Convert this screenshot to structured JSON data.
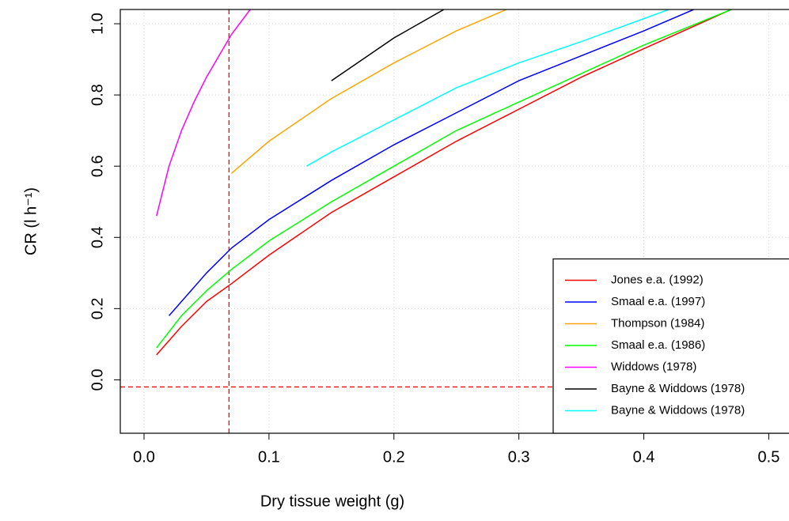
{
  "chart_data": {
    "type": "line",
    "xlabel": "Dry tissue weight (g)",
    "ylabel": "CR (l h⁻¹)",
    "xlim": [
      -0.019,
      0.52
    ],
    "ylim": [
      -0.15,
      1.04
    ],
    "xticks": [
      {
        "value": 0,
        "label": "0.0"
      },
      0.1,
      0.2,
      0.3,
      0.4,
      0.5
    ],
    "yticks": [
      {
        "value": 0,
        "label": "0.0"
      },
      0.2,
      0.4,
      0.6,
      0.8,
      {
        "value": 1,
        "label": "1.0"
      }
    ],
    "grid": true,
    "legend": "bottomright",
    "reference_lines": {
      "x": 0.068,
      "y": -0.02,
      "color": "#ff0000"
    },
    "series": [
      {
        "name": "Jones e.a. (1992)",
        "color": "#ff0000",
        "x": [
          0.01,
          0.03,
          0.05,
          0.07,
          0.1,
          0.15,
          0.2,
          0.25,
          0.3,
          0.35,
          0.4,
          0.47
        ],
        "values": [
          0.07,
          0.15,
          0.22,
          0.27,
          0.35,
          0.47,
          0.57,
          0.67,
          0.76,
          0.85,
          0.93,
          1.04
        ]
      },
      {
        "name": "Smaal e.a. (1997)",
        "color": "#0000ff",
        "x": [
          0.02,
          0.05,
          0.07,
          0.1,
          0.15,
          0.2,
          0.25,
          0.3,
          0.35,
          0.4,
          0.44
        ],
        "values": [
          0.18,
          0.3,
          0.37,
          0.45,
          0.56,
          0.66,
          0.75,
          0.84,
          0.91,
          0.98,
          1.04
        ]
      },
      {
        "name": "Thompson (1984)",
        "color": "#ffa500",
        "x": [
          0.07,
          0.1,
          0.15,
          0.2,
          0.25,
          0.29
        ],
        "values": [
          0.58,
          0.67,
          0.79,
          0.89,
          0.98,
          1.04
        ]
      },
      {
        "name": "Smaal e.a. (1986)",
        "color": "#00ff00",
        "x": [
          0.01,
          0.03,
          0.05,
          0.07,
          0.1,
          0.15,
          0.2,
          0.25,
          0.3,
          0.35,
          0.4,
          0.47
        ],
        "values": [
          0.09,
          0.18,
          0.25,
          0.31,
          0.39,
          0.5,
          0.6,
          0.7,
          0.78,
          0.86,
          0.94,
          1.04
        ]
      },
      {
        "name": "Widdows (1978)",
        "color": "#ff00ff",
        "x": [
          0.01,
          0.02,
          0.03,
          0.04,
          0.05,
          0.06,
          0.07,
          0.085
        ],
        "values": [
          0.46,
          0.6,
          0.7,
          0.78,
          0.85,
          0.91,
          0.97,
          1.04
        ]
      },
      {
        "name": "Bayne & Widdows (1978)",
        "color": "#000000",
        "x": [
          0.15,
          0.2,
          0.24
        ],
        "values": [
          0.84,
          0.96,
          1.04
        ]
      },
      {
        "name": "Bayne & Widdows (1978)",
        "color": "#00ffff",
        "x": [
          0.13,
          0.15,
          0.2,
          0.25,
          0.3,
          0.35,
          0.42
        ],
        "values": [
          0.6,
          0.64,
          0.73,
          0.82,
          0.89,
          0.95,
          1.04
        ]
      }
    ]
  }
}
